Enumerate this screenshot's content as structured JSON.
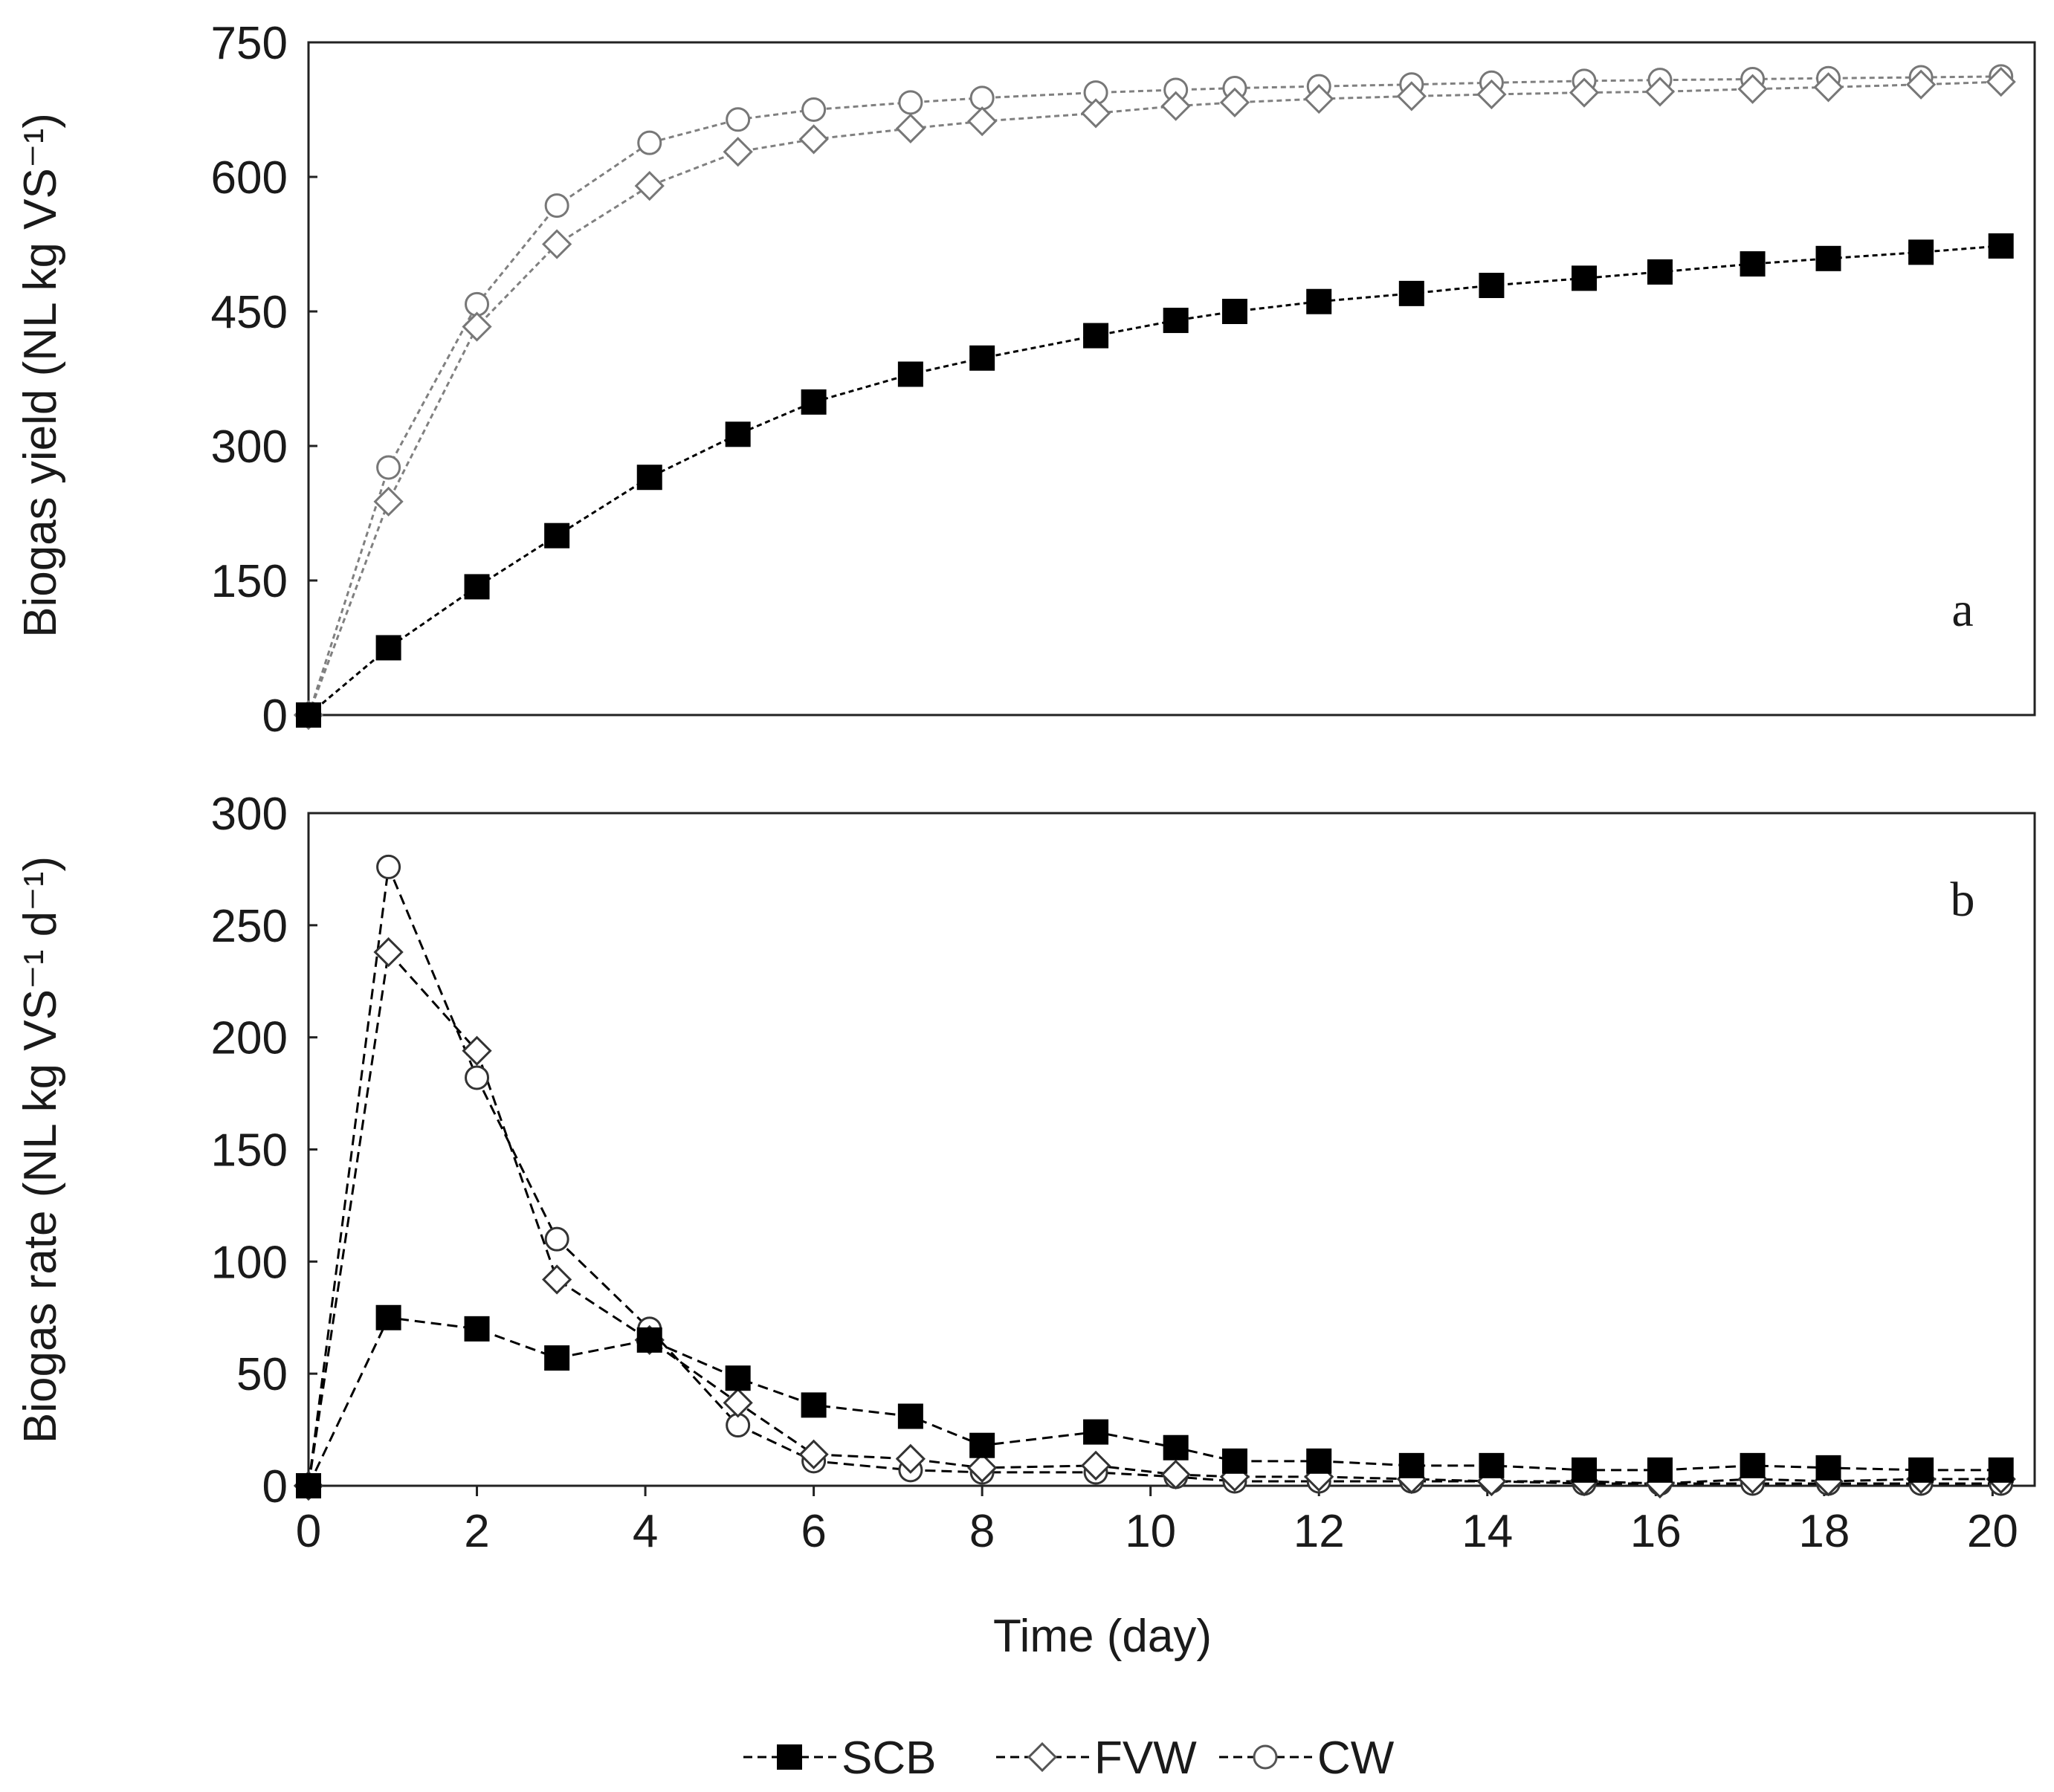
{
  "chart_data": [
    {
      "type": "line",
      "panel_label": "a",
      "xlabel": "",
      "ylabel": "Biogas yield (NL kg VS⁻¹)",
      "xlim": [
        0,
        20.5
      ],
      "ylim": [
        0,
        750
      ],
      "yticks": [
        "0",
        "150",
        "300",
        "450",
        "600",
        "750"
      ],
      "grid": false,
      "series": [
        {
          "name": "SCB",
          "marker": "square-filled",
          "line": "dashed",
          "color": "#000000",
          "x": [
            0,
            0.95,
            2,
            2.95,
            4.05,
            5.1,
            6,
            7.15,
            8,
            9.35,
            10.3,
            11,
            12,
            13.1,
            14.05,
            15.15,
            16.05,
            17.15,
            18.05,
            19.15,
            20.1
          ],
          "values": [
            0,
            75,
            143,
            200,
            265,
            313,
            349,
            380,
            398,
            423,
            440,
            450,
            461,
            470,
            479,
            487,
            494,
            503,
            509,
            516,
            523
          ]
        },
        {
          "name": "FVW",
          "marker": "diamond-open",
          "line": "dashed",
          "color": "#808080",
          "x": [
            0,
            0.95,
            2,
            2.95,
            4.05,
            5.1,
            6,
            7.15,
            8,
            9.35,
            10.3,
            11,
            12,
            13.1,
            14.05,
            15.15,
            16.05,
            17.15,
            18.05,
            19.15,
            20.1
          ],
          "values": [
            0,
            238,
            433,
            525,
            590,
            628,
            642,
            654,
            662,
            671,
            679,
            683,
            687,
            690,
            692,
            694,
            695,
            698,
            700,
            703,
            706
          ]
        },
        {
          "name": "CW",
          "marker": "circle-open",
          "line": "dashed",
          "color": "#808080",
          "x": [
            0,
            0.95,
            2,
            2.95,
            4.05,
            5.1,
            6,
            7.15,
            8,
            9.35,
            10.3,
            11,
            12,
            13.1,
            14.05,
            15.15,
            16.05,
            17.15,
            18.05,
            19.15,
            20.1
          ],
          "values": [
            0,
            276,
            458,
            568,
            638,
            664,
            675,
            683,
            688,
            694,
            697,
            699,
            701,
            703,
            705,
            707,
            708,
            709,
            710,
            711,
            712
          ]
        }
      ]
    },
    {
      "type": "line",
      "panel_label": "b",
      "xlabel": "Time (day)",
      "ylabel": "Biogas rate (NL kg VS⁻¹ d⁻¹)",
      "xlim": [
        0,
        20.5
      ],
      "ylim": [
        0,
        300
      ],
      "xticks": [
        "0",
        "2",
        "4",
        "6",
        "8",
        "10",
        "12",
        "14",
        "16",
        "18",
        "20"
      ],
      "yticks": [
        "0",
        "50",
        "100",
        "150",
        "200",
        "250",
        "300"
      ],
      "grid": false,
      "series": [
        {
          "name": "SCB",
          "marker": "square-filled",
          "line": "dashed",
          "color": "#000000",
          "x": [
            0,
            0.95,
            2,
            2.95,
            4.05,
            5.1,
            6,
            7.15,
            8,
            9.35,
            10.3,
            11,
            12,
            13.1,
            14.05,
            15.15,
            16.05,
            17.15,
            18.05,
            19.15,
            20.1
          ],
          "values": [
            0,
            75,
            70,
            57,
            65,
            48,
            36,
            31,
            18,
            24,
            17,
            11,
            11,
            9,
            9,
            7,
            7,
            9,
            8,
            7,
            7
          ]
        },
        {
          "name": "FVW",
          "marker": "diamond-open",
          "line": "dashed",
          "color": "#000000",
          "x": [
            0,
            0.95,
            2,
            2.95,
            4.05,
            5.1,
            6,
            7.15,
            8,
            9.35,
            10.3,
            11,
            12,
            13.1,
            14.05,
            15.15,
            16.05,
            17.15,
            18.05,
            19.15,
            20.1
          ],
          "values": [
            0,
            238,
            194,
            92,
            65,
            37,
            14,
            12,
            8,
            9,
            5,
            4,
            4,
            3,
            2,
            2,
            1,
            3,
            2,
            3,
            3
          ]
        },
        {
          "name": "CW",
          "marker": "circle-open",
          "line": "dashed",
          "color": "#000000",
          "x": [
            0,
            0.95,
            2,
            2.95,
            4.05,
            5.1,
            6,
            7.15,
            8,
            9.35,
            10.3,
            11,
            12,
            13.1,
            14.05,
            15.15,
            16.05,
            17.15,
            18.05,
            19.15,
            20.1
          ],
          "values": [
            0,
            276,
            182,
            110,
            70,
            27,
            11,
            7,
            6,
            6,
            4,
            2,
            2,
            2,
            2,
            1,
            1,
            1,
            1,
            1,
            1
          ]
        }
      ]
    }
  ],
  "legend": [
    {
      "label": "SCB",
      "marker": "square-filled"
    },
    {
      "label": "FVW",
      "marker": "diamond-open"
    },
    {
      "label": "CW",
      "marker": "circle-open"
    }
  ],
  "legend_position": "bottom-center"
}
